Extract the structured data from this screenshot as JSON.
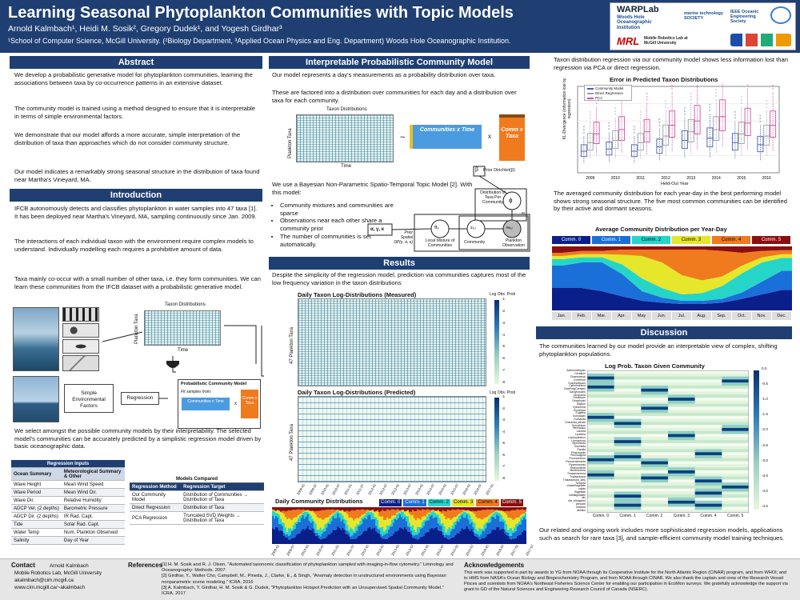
{
  "header": {
    "title": "Learning Seasonal Phytoplankton Communities with Topic Models",
    "authors": "Arnold Kalmbach¹, Heidi M. Sosik², Gregory Dudek¹, and Yogesh Girdhar³",
    "affiliations": "¹School of Computer Science, McGill University. (²Biology Department, ³Applied Ocean Physics and Eng. Department) Woods Hole Oceanographic Institution.",
    "logos": {
      "warplab": "WARPLab",
      "whoi": "Woods Hole Oceanographic Institution",
      "mts": "marine technology SOCIETY",
      "ieee": "IEEE Oceanic Engineering Society",
      "mrl": "MRL",
      "mrl_sub": "Mobile Robotics Lab at McGill University"
    }
  },
  "abstract": {
    "heading": "Abstract",
    "p1": "We develop a probabilistic generative model for phytoplankton communities, learning the associations between taxa by co-occurrence patterns in an extensive dataset.",
    "p2": "The community model is trained using a method designed to ensure that it is interpretable in terms of simple environmental factors.",
    "p3": "We demonstrate that our model affords a more accurate, simple interpretation of the distribution of taxa than approaches which do not consider community structure.",
    "p4": "Our model indicates a remarkably strong seasonal structure in the distribution of taxa found near Martha's Vineyard, MA."
  },
  "introduction": {
    "heading": "Introduction",
    "p1": "IFCB autonomously detects and classifies phytoplankton in water samples into 47 taxa [1]. It has been deployed near Martha's Vineyard, MA, sampling continuously since Jan. 2009.",
    "p2": "The interactions of each individual taxon with the environment require complex models to understand. Individually modelling each requires a prohibitive amount of data.",
    "p3": "Taxa mainly co-occur with a small number of other taxa, i.e. they form communities. We can learn these communities from the IFCB dataset with a probabilistic generative model.",
    "diagram": {
      "taxon_distributions": "Taxon Distributions",
      "plankton_taxa": "Plankton Taxa",
      "time": "Time",
      "simple_factors": "Simple Environmental Factors",
      "regression": "Regression",
      "pcm_title": "Probabilistic Community Model",
      "fit_samples": "Fit samples from:",
      "communities_time": "Communities x Time",
      "comm_taxa": "Comm x Taxa",
      "times_sign": "x"
    },
    "p4": "We select amongst the possible community models by their interpretability. The selected model's communities can be accurately predicted by a simplistic regression model driven by basic oceanographic data."
  },
  "regression_inputs": {
    "title": "Regression Inputs",
    "headers": [
      "Ocean Summary",
      "Meteorological Summary & Other"
    ],
    "rows": [
      [
        "Wave Height",
        "Mean Wind Speed"
      ],
      [
        "Wave Period",
        "Mean Wind Dir."
      ],
      [
        "Wave Dir.",
        "Relative Humidity"
      ],
      [
        "ADCP Vel. (2 depths)",
        "Barometric Pressure"
      ],
      [
        "ADCP Dir. (2 depths)",
        "IR Rad. Capt."
      ],
      [
        "Tide",
        "Solar Rad. Capt."
      ],
      [
        "Water Temp",
        "Num. Plankton Observed"
      ],
      [
        "Salinity",
        "Day of Year"
      ]
    ]
  },
  "models_compared": {
    "title": "Models Compared",
    "headers": [
      "Regression Method",
      "Regression Target"
    ],
    "rows": [
      [
        "Our Community Model",
        "Distribution of Communities → Distribution of Taxa"
      ],
      [
        "Direct Regression",
        "Distribution of Taxa"
      ],
      [
        "PCA Regression",
        "Truncated SVD Weights → Distribution of Taxa"
      ]
    ]
  },
  "ipcm": {
    "heading": "Interpretable Probabilistic Community Model",
    "p1": "Our model represents a day's measurements as a probability distribution over taxa.",
    "p2": "These are factored into a distribution over communities for each day and a distribution over taxa for each community.",
    "diagram": {
      "taxon_distributions": "Taxon Distributions",
      "plankton_taxa": "Plankton Taxa",
      "time": "Time",
      "approx": "~",
      "communities_time": "Communities x Time",
      "comm_taxa": "Comm x Taxa",
      "times_sign": "x"
    },
    "p3": "We use a Bayesian Non-Parametric Spatio-Temporal Topic Model [2]. With this model:",
    "bullets": [
      "Community mixtures and communities are sparse",
      "Observations near each other share a community prior",
      "The number of communities is set automatically."
    ],
    "graph": {
      "beta": "β",
      "prior_dirichlet": "Prior Dirichlet(β)",
      "dist_taxa": "Distribution of Taxa Per Community",
      "phi": "ϕ",
      "inf": "∞",
      "params": "α, γ, κ",
      "prior_spatial": "Prior Spatial DP(γ, α, κ)",
      "theta": "θₓ",
      "local_mix": "Local Mixture of Communities",
      "z": "zₓ,ᵢ",
      "community": "Community",
      "w": "wₓ,ᵢ",
      "plankton_obs": "Plankton Observation"
    }
  },
  "results": {
    "heading": "Results",
    "p1": "Despite the simplicity of the regression model, prediction via communities captures most of the low frequency variation in the taxon distributions",
    "measured_title": "Daily Taxon Log-Distributions (Measured)",
    "predicted_title": "Daily Taxon Log-Distributions (Predicted)",
    "ylabel": "47 Plankton Taxa",
    "cbar_label": "Log Obs. Prob",
    "cbar_ticks": [
      "-1",
      "-2",
      "-3",
      "-4",
      "-5",
      "-6",
      "-7",
      "-8"
    ],
    "dates": [
      "2009-01",
      "2009-07",
      "2010-01",
      "2010-07",
      "2011-01",
      "2011-07",
      "2012-01",
      "2012-07",
      "2013-01",
      "2013-07",
      "2014-01",
      "2014-07",
      "2015-01",
      "2015-07",
      "2016-01",
      "2016-07",
      "2017-01"
    ],
    "comm_title": "Daily Community Distributions",
    "comm_dates": [
      "2009-01",
      "2009-07",
      "2010-01",
      "2010-07",
      "2011-01",
      "2011-07",
      "2012-01",
      "2012-07",
      "2013-01",
      "2013-07",
      "2014-01",
      "2014-07",
      "2015-01",
      "2015-07",
      "2016-01",
      "2016-07",
      "2017-01",
      "2017-07"
    ]
  },
  "communities": [
    {
      "label": "Comm. 0",
      "color": "#0a1f8a",
      "text": "#ffffff"
    },
    {
      "label": "Comm. 1",
      "color": "#1b6fd8",
      "text": "#ffffff"
    },
    {
      "label": "Comm. 2",
      "color": "#25d6c8",
      "text": "#000000"
    },
    {
      "label": "Comm. 3",
      "color": "#e6e62a",
      "text": "#000000"
    },
    {
      "label": "Comm. 4",
      "color": "#f07a1e",
      "text": "#000000"
    },
    {
      "label": "Comm. 5",
      "color": "#8a0f0f",
      "text": "#ffffff"
    }
  ],
  "right": {
    "p1": "Taxon distribution regression via our community model shows less information lost than regression via PCA or direct regression.",
    "kl_title": "Error in Predicted Taxon Distributions",
    "kl_ylabel": "KL-Divergence (information lost by regression)",
    "kl_xlabel": "Held-Out Year",
    "kl_legend": [
      "Community Model",
      "Direct Regression",
      "PCA"
    ],
    "p2": "The averaged community distribution for each year-day in the best performing model shows strong seasonal structure. The five most common communities can be identified by their active and dormant seasons.",
    "avg_title": "Average Community Distribution per Year-Day",
    "months": [
      "Jan.",
      "Feb.",
      "Mar.",
      "Apr.",
      "May",
      "Jun.",
      "Jul.",
      "Aug.",
      "Sep.",
      "Oct.",
      "Nov.",
      "Dec."
    ]
  },
  "discussion": {
    "heading": "Discussion",
    "p1": "The communities learned by our model provide an interpretable view of complex, shifting phytoplankton populations.",
    "heat_title": "Log Prob. Taxon Given Community",
    "taxa": [
      "Asterionellopsis",
      "Ceratium",
      "Chaetoceros",
      "Corethron",
      "Coscinodiscus",
      "Cylindrotheca",
      "DactFragCerataul",
      "Dactyliosolen",
      "Dictyocha",
      "Dinobryon",
      "Dinophysis",
      "Ditylum",
      "Ephemera",
      "Eucampia",
      "Euglena",
      "Gonyaulax",
      "Guinardia",
      "Guinardia_striata",
      "Gyrodinium",
      "Hemiaulus",
      "Laboea",
      "Lauderia",
      "Leptocylindrus",
      "Licmophora",
      "Myrionecta",
      "Odontella",
      "Paralia",
      "Phaeocystis",
      "Pleurosigma",
      "Prorocentrum",
      "Pseudonitzschia",
      "Pyramimonas",
      "Rhizosolenia",
      "Skeletonema",
      "Thalassionema",
      "Thalassiosira",
      "Thalassiosira_dirty",
      "Tontonia",
      "clusterflagellate",
      "ciliate",
      "flagellate",
      "kiteflagellates",
      "mix",
      "mix_elongated",
      "pennate",
      "tintinnid",
      "detritus"
    ],
    "heat_cols": [
      "Comm. 0",
      "Comm. 1",
      "Comm. 2",
      "Comm. 3",
      "Comm. 4",
      "Comm. 5"
    ],
    "heat_ticks": [
      "0.0",
      "-0.5",
      "-1.0",
      "-1.5",
      "-2.0",
      "-2.5",
      "-3.0",
      "-3.5",
      "-4.0",
      "-4.5"
    ],
    "p2": "Our related and ongoing work includes more sophisticated regression models, applications such as search for rare taxa [3], and sample-efficient community model training techniques."
  },
  "footer": {
    "contact_title": "Contact",
    "contact_lines": [
      "Arnold Kalmbach",
      "Mobile Robotics Lab, McGill University",
      "akalmbach@cim.mcgill.ca",
      "www.cim.mcgill.ca/~akalmbach"
    ],
    "refs_title": "References",
    "refs": [
      "[1] H. M. Sosik and R. J. Olson, \"Automated taxonomic classification of phytoplankton sampled with imaging-in-flow cytometry.\" Limnology and Oceanography: Methods. 2007",
      "[2] Girdhar, Y., Walter Cho, Campbell, M., Pineda, J., Clarke, E., & Singh, \"Anomaly detection in unstructured environments using Bayesian nonparametric scene modeling.\" ICRA. 2016",
      "[3] A. Kalmbach, Y. Girdhar, H. M. Sosik & G. Dudek, \"Phytoplankton Hotspot Prediction with an Unsupervised Spatial Community Model.\" ICRA. 2017"
    ],
    "ack_title": "Acknowledgements",
    "ack": "This work was supported in part by awards to YG from NOAA through its Cooperative Institute for the North Atlantic Region (CINAR) program, and from WHOI; and to HMS from NASA's Ocean Biology and Biogeochemistry Program, and from NOAA through CINAR. We also thank the captain and crew of the Research Vessel Pisces and scientists from NOAA's Northeast Fisheries Science Center for enabling our participation in EcoMon surveys. We gratefully acknowledge the support via grant to GD of the Natural Sciences and Engineering Research Council of Canada (NSERC)."
  },
  "chart_data": [
    {
      "type": "box",
      "title": "Error in Predicted Taxon Distributions",
      "xlabel": "Held-Out Year",
      "ylabel": "KL-Divergence (information lost by regression)",
      "categories": [
        "2009",
        "2010",
        "2011",
        "2012",
        "2013",
        "2014",
        "2015",
        "2016"
      ],
      "series": [
        {
          "name": "Community Model",
          "color": "#4b5fa8",
          "medians": [
            0.5,
            0.55,
            0.5,
            0.6,
            0.75,
            0.8,
            0.7,
            0.65
          ]
        },
        {
          "name": "Direct Regression",
          "color": "#9aa0a6",
          "medians": [
            0.7,
            0.75,
            0.7,
            0.85,
            0.95,
            1.0,
            0.9,
            0.85
          ]
        },
        {
          "name": "PCA",
          "color": "#d24fa0",
          "medians": [
            0.9,
            1.0,
            0.95,
            1.1,
            1.2,
            1.3,
            1.15,
            1.1
          ]
        }
      ]
    },
    {
      "type": "area",
      "title": "Average Community Distribution per Year-Day",
      "categories": [
        "Jan.",
        "Feb.",
        "Mar.",
        "Apr.",
        "May",
        "Jun.",
        "Jul.",
        "Aug.",
        "Sep.",
        "Oct.",
        "Nov.",
        "Dec."
      ],
      "series": [
        {
          "name": "Comm. 0",
          "values": [
            0.35,
            0.35,
            0.3,
            0.22,
            0.15,
            0.12,
            0.1,
            0.1,
            0.12,
            0.18,
            0.25,
            0.32
          ]
        },
        {
          "name": "Comm. 1",
          "values": [
            0.35,
            0.4,
            0.45,
            0.35,
            0.15,
            0.08,
            0.05,
            0.05,
            0.06,
            0.1,
            0.2,
            0.3
          ]
        },
        {
          "name": "Comm. 2",
          "values": [
            0.1,
            0.08,
            0.08,
            0.15,
            0.2,
            0.15,
            0.1,
            0.12,
            0.2,
            0.3,
            0.3,
            0.2
          ]
        },
        {
          "name": "Comm. 3",
          "values": [
            0.05,
            0.05,
            0.05,
            0.15,
            0.35,
            0.4,
            0.3,
            0.2,
            0.15,
            0.12,
            0.08,
            0.06
          ]
        },
        {
          "name": "Comm. 4",
          "values": [
            0.05,
            0.05,
            0.05,
            0.08,
            0.1,
            0.2,
            0.4,
            0.48,
            0.4,
            0.2,
            0.1,
            0.06
          ]
        },
        {
          "name": "Comm. 5",
          "values": [
            0.1,
            0.07,
            0.07,
            0.05,
            0.05,
            0.05,
            0.05,
            0.05,
            0.07,
            0.1,
            0.07,
            0.06
          ]
        }
      ]
    }
  ]
}
